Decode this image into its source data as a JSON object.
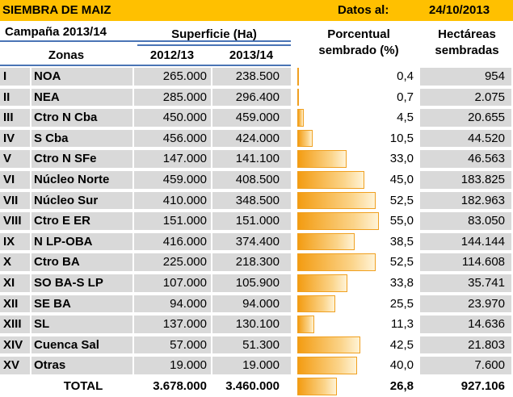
{
  "title": "SIEMBRA DE MAIZ",
  "date_label": "Datos al:",
  "date": "24/10/2013",
  "headers": {
    "campana": "Campaña 2013/14",
    "superficie": "Superficie (Ha)",
    "porc_line1": "Porcentual",
    "porc_line2": "sembrado (%)",
    "hect_line1": "Hectáreas",
    "hect_line2": "sembradas",
    "zonas": "Zonas",
    "year1": "2012/13",
    "year2": "2013/14"
  },
  "rows": [
    {
      "roman": "I",
      "zona": "NOA",
      "y1": "265.000",
      "y2": "238.500",
      "porc": "0,4",
      "porc_value": 0.4,
      "hect": "954"
    },
    {
      "roman": "II",
      "zona": "NEA",
      "y1": "285.000",
      "y2": "296.400",
      "porc": "0,7",
      "porc_value": 0.7,
      "hect": "2.075"
    },
    {
      "roman": "III",
      "zona": "Ctro N Cba",
      "y1": "450.000",
      "y2": "459.000",
      "porc": "4,5",
      "porc_value": 4.5,
      "hect": "20.655"
    },
    {
      "roman": "IV",
      "zona": "S Cba",
      "y1": "456.000",
      "y2": "424.000",
      "porc": "10,5",
      "porc_value": 10.5,
      "hect": "44.520"
    },
    {
      "roman": "V",
      "zona": "Ctro N SFe",
      "y1": "147.000",
      "y2": "141.100",
      "porc": "33,0",
      "porc_value": 33.0,
      "hect": "46.563"
    },
    {
      "roman": "VI",
      "zona": "Núcleo Norte",
      "y1": "459.000",
      "y2": "408.500",
      "porc": "45,0",
      "porc_value": 45.0,
      "hect": "183.825"
    },
    {
      "roman": "VII",
      "zona": "Núcleo Sur",
      "y1": "410.000",
      "y2": "348.500",
      "porc": "52,5",
      "porc_value": 52.5,
      "hect": "182.963"
    },
    {
      "roman": "VIII",
      "zona": "Ctro E ER",
      "y1": "151.000",
      "y2": "151.000",
      "porc": "55,0",
      "porc_value": 55.0,
      "hect": "83.050"
    },
    {
      "roman": "IX",
      "zona": "N LP-OBA",
      "y1": "416.000",
      "y2": "374.400",
      "porc": "38,5",
      "porc_value": 38.5,
      "hect": "144.144"
    },
    {
      "roman": "X",
      "zona": "Ctro BA",
      "y1": "225.000",
      "y2": "218.300",
      "porc": "52,5",
      "porc_value": 52.5,
      "hect": "114.608"
    },
    {
      "roman": "XI",
      "zona": "SO BA-S LP",
      "y1": "107.000",
      "y2": "105.900",
      "porc": "33,8",
      "porc_value": 33.8,
      "hect": "35.741"
    },
    {
      "roman": "XII",
      "zona": "SE BA",
      "y1": "94.000",
      "y2": "94.000",
      "porc": "25,5",
      "porc_value": 25.5,
      "hect": "23.970"
    },
    {
      "roman": "XIII",
      "zona": "SL",
      "y1": "137.000",
      "y2": "130.100",
      "porc": "11,3",
      "porc_value": 11.3,
      "hect": "14.636"
    },
    {
      "roman": "XIV",
      "zona": "Cuenca Sal",
      "y1": "57.000",
      "y2": "51.300",
      "porc": "42,5",
      "porc_value": 42.5,
      "hect": "21.803"
    },
    {
      "roman": "XV",
      "zona": "Otras",
      "y1": "19.000",
      "y2": "19.000",
      "porc": "40,0",
      "porc_value": 40.0,
      "hect": "7.600"
    }
  ],
  "total": {
    "label": "TOTAL",
    "y1": "3.678.000",
    "y2": "3.460.000",
    "porc": "26,8",
    "porc_value": 26.8,
    "hect": "927.106"
  },
  "colors": {
    "banner": "#ffc000",
    "row_fill": "#d9d9d9",
    "bar": "#f39c12",
    "rule": "#4a74b5"
  }
}
